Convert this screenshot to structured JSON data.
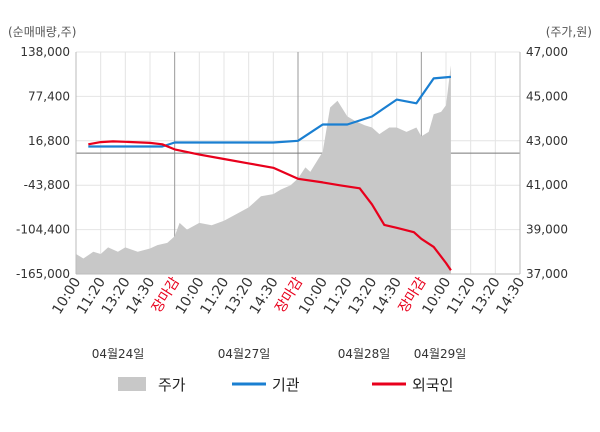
{
  "chart_data": {
    "type": "line",
    "left_axis_title": "(순매매량,주)",
    "right_axis_title": "(주가,원)",
    "y_left_ticks": [
      "138,000",
      "77,400",
      "16,800",
      "-43,800",
      "-104,400",
      "-165,000"
    ],
    "y_left_range": [
      -165000,
      138000
    ],
    "y_right_ticks": [
      "47,000",
      "45,000",
      "43,000",
      "41,000",
      "39,000",
      "37,000"
    ],
    "y_right_range": [
      37000,
      47000
    ],
    "x_labels": [
      {
        "text": "10:00",
        "red": false
      },
      {
        "text": "11:20",
        "red": false
      },
      {
        "text": "13:20",
        "red": false
      },
      {
        "text": "14:30",
        "red": false
      },
      {
        "text": "장마감",
        "red": true
      },
      {
        "text": "10:00",
        "red": false
      },
      {
        "text": "11:20",
        "red": false
      },
      {
        "text": "13:20",
        "red": false
      },
      {
        "text": "14:30",
        "red": false
      },
      {
        "text": "장마감",
        "red": true
      },
      {
        "text": "10:00",
        "red": false
      },
      {
        "text": "11:20",
        "red": false
      },
      {
        "text": "13:20",
        "red": false
      },
      {
        "text": "14:30",
        "red": false
      },
      {
        "text": "장마감",
        "red": true
      },
      {
        "text": "10:00",
        "red": false
      },
      {
        "text": "11:20",
        "red": false
      },
      {
        "text": "13:20",
        "red": false
      },
      {
        "text": "14:30",
        "red": false
      }
    ],
    "dates": [
      "04월24일",
      "04월27일",
      "04월28일",
      "04월29일"
    ],
    "grid": true,
    "legend": {
      "placement": "bottom",
      "items": [
        {
          "name": "주가",
          "color": "#c8c8c8",
          "kind": "area"
        },
        {
          "name": "기관",
          "color": "#1a7fd1",
          "kind": "line"
        },
        {
          "name": "외국인",
          "color": "#e8001c",
          "kind": "line"
        }
      ]
    },
    "series": [
      {
        "name": "기관",
        "color": "#1a7fd1",
        "axis": "left",
        "points": [
          [
            0.5,
            9000
          ],
          [
            1,
            9000
          ],
          [
            2,
            9000
          ],
          [
            3,
            9000
          ],
          [
            3.5,
            9000
          ],
          [
            4,
            14500
          ],
          [
            5,
            14500
          ],
          [
            6,
            14500
          ],
          [
            7,
            14500
          ],
          [
            8,
            14500
          ],
          [
            9,
            16800
          ],
          [
            10,
            39000
          ],
          [
            11,
            39000
          ],
          [
            12,
            50000
          ],
          [
            13,
            73000
          ],
          [
            13.8,
            68000
          ],
          [
            14.5,
            102000
          ],
          [
            15.2,
            104000
          ]
        ]
      },
      {
        "name": "외국인",
        "color": "#e8001c",
        "axis": "left",
        "points": [
          [
            0.5,
            12000
          ],
          [
            1,
            15000
          ],
          [
            1.5,
            16000
          ],
          [
            2,
            15500
          ],
          [
            3,
            14000
          ],
          [
            3.5,
            12000
          ],
          [
            4,
            5000
          ],
          [
            5,
            -2000
          ],
          [
            6,
            -8000
          ],
          [
            7,
            -14000
          ],
          [
            8,
            -20000
          ],
          [
            9,
            -35000
          ],
          [
            10,
            -40000
          ],
          [
            10.7,
            -44000
          ],
          [
            11.5,
            -48000
          ],
          [
            12,
            -70000
          ],
          [
            12.5,
            -98000
          ],
          [
            13,
            -102000
          ],
          [
            13.7,
            -108000
          ],
          [
            14,
            -117000
          ],
          [
            14.5,
            -128000
          ],
          [
            15,
            -150000
          ],
          [
            15.2,
            -160000
          ]
        ]
      },
      {
        "name": "주가",
        "color": "#c8c8c8",
        "axis": "right",
        "points": [
          [
            0,
            37900
          ],
          [
            0.3,
            37700
          ],
          [
            0.7,
            38000
          ],
          [
            1,
            37900
          ],
          [
            1.3,
            38200
          ],
          [
            1.7,
            38000
          ],
          [
            2,
            38200
          ],
          [
            2.5,
            38000
          ],
          [
            3,
            38150
          ],
          [
            3.3,
            38300
          ],
          [
            3.7,
            38400
          ],
          [
            4,
            38700
          ],
          [
            4.2,
            39300
          ],
          [
            4.5,
            39000
          ],
          [
            5,
            39300
          ],
          [
            5.5,
            39200
          ],
          [
            6,
            39400
          ],
          [
            6.5,
            39700
          ],
          [
            7,
            40000
          ],
          [
            7.5,
            40500
          ],
          [
            8,
            40600
          ],
          [
            8.3,
            40800
          ],
          [
            8.7,
            41000
          ],
          [
            9,
            41300
          ],
          [
            9.3,
            41800
          ],
          [
            9.5,
            41600
          ],
          [
            10,
            42500
          ],
          [
            10.3,
            44500
          ],
          [
            10.6,
            44800
          ],
          [
            11,
            44100
          ],
          [
            11.3,
            43900
          ],
          [
            11.7,
            43700
          ],
          [
            12,
            43600
          ],
          [
            12.3,
            43300
          ],
          [
            12.7,
            43600
          ],
          [
            13,
            43600
          ],
          [
            13.4,
            43400
          ],
          [
            13.8,
            43600
          ],
          [
            14,
            43200
          ],
          [
            14.3,
            43400
          ],
          [
            14.5,
            44200
          ],
          [
            14.8,
            44300
          ],
          [
            15,
            44600
          ],
          [
            15.2,
            46400
          ]
        ]
      }
    ]
  }
}
